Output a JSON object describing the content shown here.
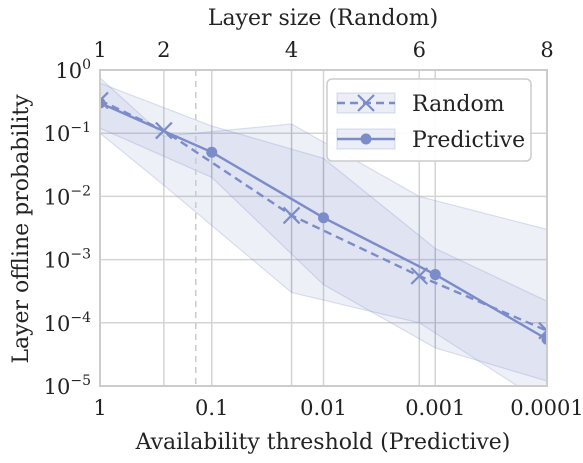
{
  "chart_data": {
    "type": "line",
    "xlabel_bottom": "Availability threshold (Predictive)",
    "xlabel_top": "Layer size (Random)",
    "ylabel": "Layer offline probability",
    "y_scale": "log",
    "ylim": [
      1e-05,
      1
    ],
    "y_ticks": [
      {
        "value": 1,
        "mant": "10",
        "exp": "0"
      },
      {
        "value": 0.1,
        "mant": "10",
        "exp": "−1"
      },
      {
        "value": 0.01,
        "mant": "10",
        "exp": "−2"
      },
      {
        "value": 0.001,
        "mant": "10",
        "exp": "−3"
      },
      {
        "value": 0.0001,
        "mant": "10",
        "exp": "−4"
      },
      {
        "value": 1e-05,
        "mant": "10",
        "exp": "−5"
      }
    ],
    "x_bottom": {
      "scale": "log",
      "range": [
        1,
        0.0001
      ],
      "ticks": [
        {
          "value": 1,
          "label": "1"
        },
        {
          "value": 0.1,
          "label": "0.1"
        },
        {
          "value": 0.01,
          "label": "0.01"
        },
        {
          "value": 0.001,
          "label": "0.001"
        },
        {
          "value": 0.0001,
          "label": "0.0001"
        }
      ]
    },
    "x_top": {
      "scale": "linear",
      "range": [
        1,
        8
      ],
      "ticks": [
        {
          "value": 1,
          "label": "1"
        },
        {
          "value": 2,
          "label": "2"
        },
        {
          "value": 4,
          "label": "4"
        },
        {
          "value": 6,
          "label": "6"
        },
        {
          "value": 8,
          "label": "8"
        }
      ]
    },
    "grid": true,
    "reference_line_x_top": 2.5,
    "legend_position": "top-right",
    "series": [
      {
        "name": "Random",
        "axis": "top",
        "style": "dashed",
        "marker": "x",
        "x": [
          1,
          2,
          4,
          6,
          8
        ],
        "y": [
          0.33,
          0.11,
          0.005,
          0.00055,
          7.5e-05
        ],
        "band_upper": [
          0.75,
          0.09,
          0.14,
          0.01,
          0.003
        ],
        "band_lower": [
          0.1,
          0.015,
          0.0003,
          0.0001,
          5e-06
        ],
        "color": "#7b8cc9"
      },
      {
        "name": "Predictive",
        "axis": "bottom",
        "style": "solid",
        "marker": "o",
        "x": [
          1,
          0.1,
          0.01,
          0.001,
          0.0001
        ],
        "y": [
          0.3,
          0.05,
          0.0046,
          0.00058,
          5.5e-05
        ],
        "band_upper": [
          0.62,
          0.13,
          0.04,
          0.0015,
          0.00022
        ],
        "band_lower": [
          0.12,
          0.02,
          0.0004,
          4e-05,
          1.2e-05
        ],
        "color": "#7b8cc9"
      }
    ]
  }
}
